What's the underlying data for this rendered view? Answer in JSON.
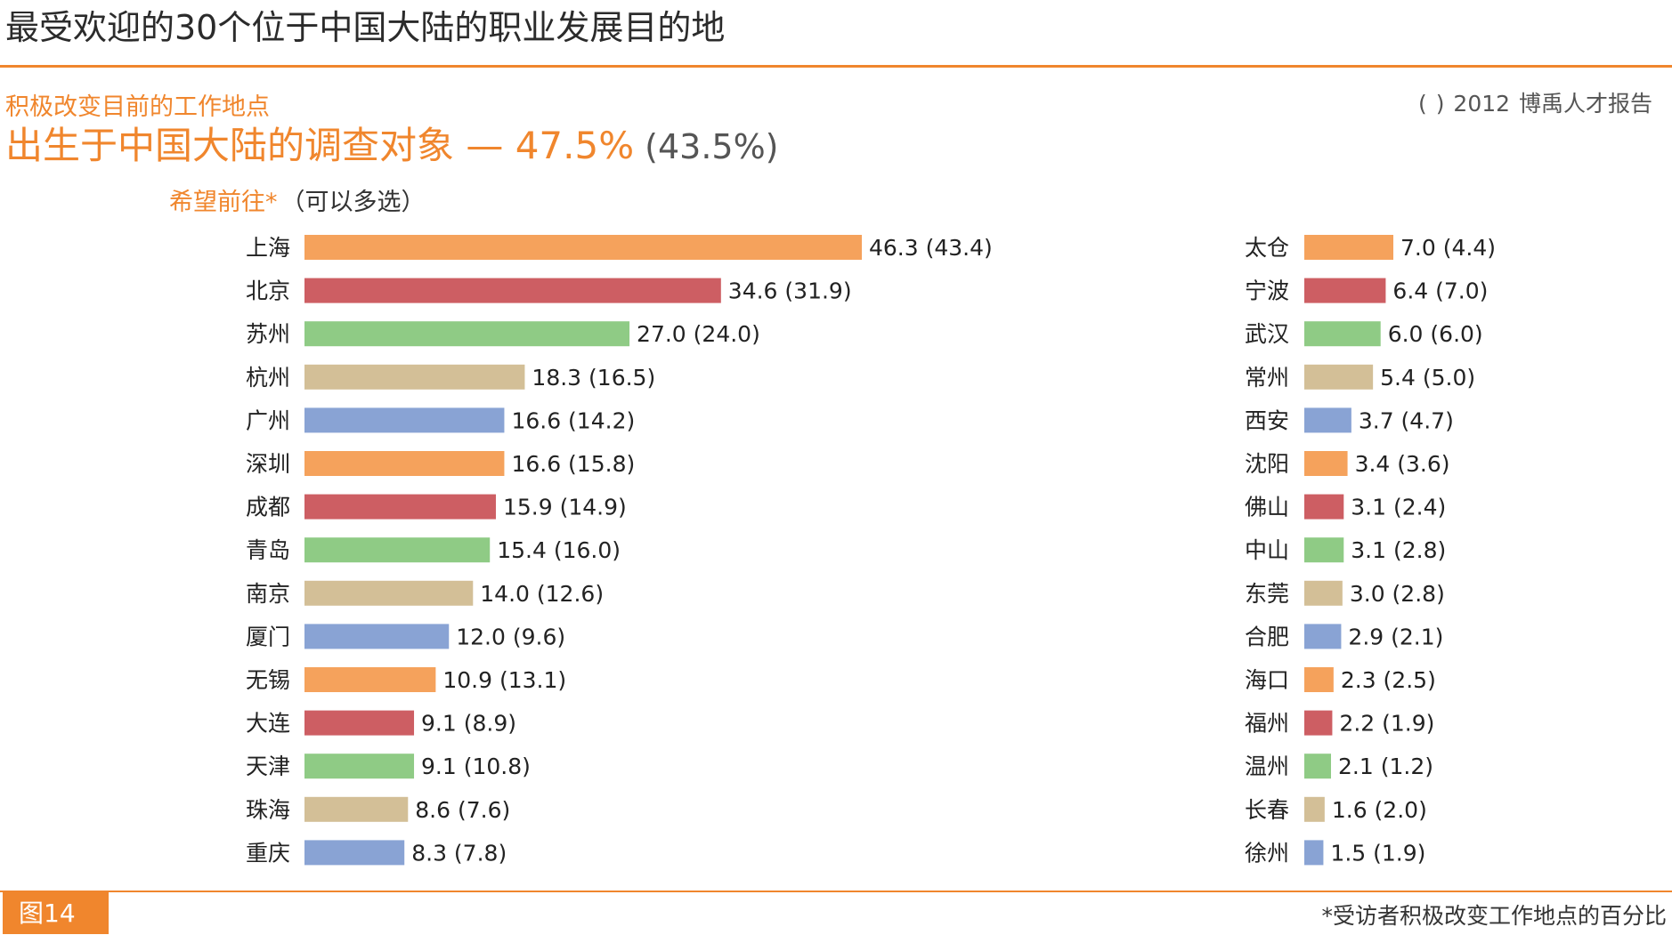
{
  "header": {
    "title": "最受欢迎的30个位于中国大陆的职业发展目的地",
    "subtitle": "积极改变目前的工作地点",
    "source": "(      ) 2012 博禹人才报告",
    "headline_main": "出生于中国大陆的调查对象 — 47.5%",
    "headline_prev": "(43.5%)",
    "wish_label": "希望前往*",
    "wish_note": "（可以多选）"
  },
  "footer": {
    "figure_label": "图14",
    "footnote": "*受访者积极改变工作地点的百分比"
  },
  "colors": {
    "orange": "#f5a25c",
    "red": "#cd5e63",
    "green": "#8fcb85",
    "tan": "#d3bf97",
    "blue": "#89a3d4",
    "accent": "#f0862d"
  },
  "chart_data": {
    "type": "bar",
    "orientation": "horizontal",
    "series_note": "current value with previous value in parentheses",
    "groups": [
      {
        "categories": [
          "上海",
          "北京",
          "苏州",
          "杭州",
          "广州",
          "深圳",
          "成都",
          "青岛",
          "南京",
          "厦门",
          "无锡",
          "大连",
          "天津",
          "珠海",
          "重庆"
        ],
        "values": [
          46.3,
          34.6,
          27.0,
          18.3,
          16.6,
          16.6,
          15.9,
          15.4,
          14.0,
          12.0,
          10.9,
          9.1,
          9.1,
          8.6,
          8.3
        ],
        "labels": [
          "46.3",
          "34.6",
          "27.0",
          "18.3",
          "16.6",
          "16.6",
          "15.9",
          "15.4",
          "14.0",
          "12.0",
          "10.9",
          "9.1",
          "9.1",
          "8.6",
          "8.3"
        ],
        "previous_labels": [
          "(43.4)",
          "(31.9)",
          "(24.0)",
          "(16.5)",
          "(14.2)",
          "(15.8)",
          "(14.9)",
          "(16.0)",
          "(12.6)",
          "(9.6)",
          "(13.1)",
          "(8.9)",
          "(10.8)",
          "(7.6)",
          "(7.8)"
        ],
        "colors": [
          "orange",
          "red",
          "green",
          "tan",
          "blue",
          "orange",
          "red",
          "green",
          "tan",
          "blue",
          "orange",
          "red",
          "green",
          "tan",
          "blue"
        ]
      },
      {
        "categories": [
          "太仓",
          "宁波",
          "武汉",
          "常州",
          "西安",
          "沈阳",
          "佛山",
          "中山",
          "东莞",
          "合肥",
          "海口",
          "福州",
          "温州",
          "长春",
          "徐州"
        ],
        "values": [
          7.0,
          6.4,
          6.0,
          5.4,
          3.7,
          3.4,
          3.1,
          3.1,
          3.0,
          2.9,
          2.3,
          2.2,
          2.1,
          1.6,
          1.5
        ],
        "labels": [
          "7.0",
          "6.4",
          "6.0",
          "5.4",
          "3.7",
          "3.4",
          "3.1",
          "3.1",
          "3.0",
          "2.9",
          "2.3",
          "2.2",
          "2.1",
          "1.6",
          "1.5"
        ],
        "previous_labels": [
          "(4.4)",
          "(7.0)",
          "(6.0)",
          "(5.0)",
          "(4.7)",
          "(3.6)",
          "(2.4)",
          "(2.8)",
          "(2.8)",
          "(2.1)",
          "(2.5)",
          "(1.9)",
          "(1.2)",
          "(2.0)",
          "(1.9)"
        ],
        "colors": [
          "orange",
          "red",
          "green",
          "tan",
          "blue",
          "orange",
          "red",
          "green",
          "tan",
          "blue",
          "orange",
          "red",
          "green",
          "tan",
          "blue"
        ]
      }
    ]
  }
}
